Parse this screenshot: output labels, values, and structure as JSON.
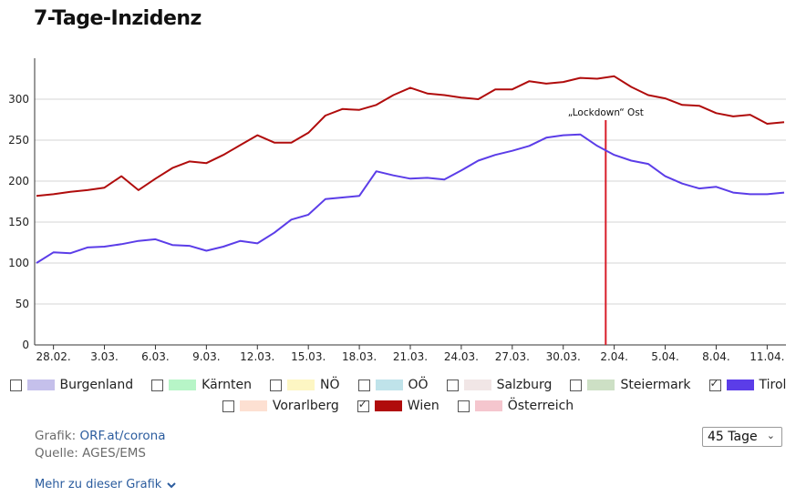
{
  "title": "7-Tage-Inzidenz",
  "chart_data": {
    "type": "line",
    "ylim": [
      0,
      350
    ],
    "y_ticks": [
      0,
      50,
      100,
      150,
      200,
      250,
      300
    ],
    "x_tick_labels": [
      "28.02.",
      "3.03.",
      "6.03.",
      "9.03.",
      "12.03.",
      "15.03.",
      "18.03.",
      "21.03.",
      "24.03.",
      "27.03.",
      "30.03.",
      "2.04.",
      "5.04.",
      "8.04.",
      "11.04."
    ],
    "grid": true,
    "annotation": {
      "label": "„Lockdown“ Ost",
      "day_index": 33.5,
      "color": "#d81e2a"
    },
    "series": [
      {
        "name": "Wien",
        "color": "#b00c0c",
        "values": [
          182,
          184,
          187,
          189,
          192,
          206,
          189,
          203,
          216,
          224,
          222,
          232,
          244,
          256,
          247,
          247,
          259,
          280,
          288,
          287,
          293,
          305,
          314,
          307,
          305,
          302,
          300,
          312,
          312,
          322,
          319,
          321,
          326,
          325,
          328,
          315,
          305,
          301,
          293,
          292,
          283,
          279,
          281,
          270,
          272
        ]
      },
      {
        "name": "Tirol",
        "color": "#5b3de8",
        "values": [
          100,
          113,
          112,
          119,
          120,
          123,
          127,
          129,
          122,
          121,
          115,
          120,
          127,
          124,
          137,
          153,
          159,
          178,
          180,
          182,
          212,
          207,
          203,
          204,
          202,
          213,
          225,
          232,
          237,
          243,
          253,
          256,
          257,
          243,
          232,
          225,
          221,
          206,
          197,
          191,
          193,
          186,
          184,
          184,
          186
        ]
      }
    ]
  },
  "legend": [
    {
      "label": "Burgenland",
      "color": "#c5c0eb",
      "checked": false
    },
    {
      "label": "Kärnten",
      "color": "#b7f5c7",
      "checked": false
    },
    {
      "label": "NÖ",
      "color": "#fdf6c3",
      "checked": false
    },
    {
      "label": "OÖ",
      "color": "#bfe3ea",
      "checked": false
    },
    {
      "label": "Salzburg",
      "color": "#f1e6e6",
      "checked": false
    },
    {
      "label": "Steiermark",
      "color": "#cde0c5",
      "checked": false
    },
    {
      "label": "Tirol",
      "color": "#5b3de8",
      "checked": true
    },
    {
      "label": "Vorarlberg",
      "color": "#fde0d2",
      "checked": false
    },
    {
      "label": "Wien",
      "color": "#b00c0c",
      "checked": true
    },
    {
      "label": "Österreich",
      "color": "#f5c6ce",
      "checked": false
    }
  ],
  "source": {
    "grafik_label": "Grafik:",
    "grafik_link": "ORF.at/corona",
    "quelle_label": "Quelle:",
    "quelle_value": "AGES/EMS"
  },
  "range_select": {
    "value": "45 Tage"
  },
  "more_link": "Mehr zu dieser Grafik"
}
